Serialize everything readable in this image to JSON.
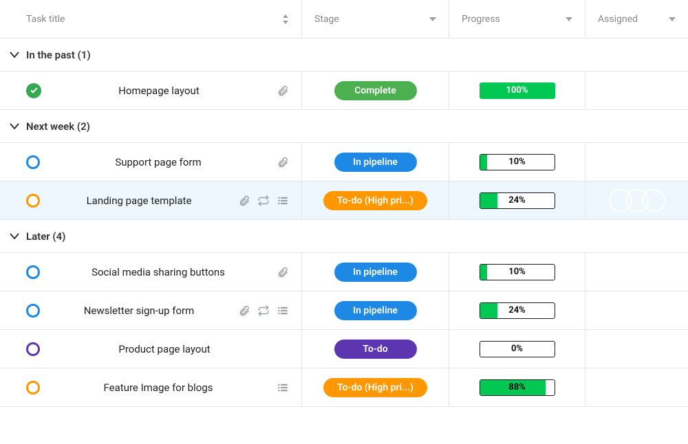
{
  "columns": {
    "title": "Task title",
    "stage": "Stage",
    "progress": "Progress",
    "assigned": "Assigned"
  },
  "colors": {
    "complete": "#4caf50",
    "pipeline": "#1e88e5",
    "todo_high": "#ff9800",
    "todo": "#5e35b1",
    "progress_fill": "#00c853",
    "ring_blue": "#1e88e5",
    "ring_orange": "#ff9800",
    "ring_purple": "#5e35b1",
    "highlight_bg": "#eef7fd",
    "avatar_a": "#00bcd4",
    "avatar_b": "#e91e63",
    "avatar_c": "#f44336",
    "avatar_d": "#8d6e63"
  },
  "groups": [
    {
      "label": "In the past (1)",
      "tasks": [
        {
          "status": "check",
          "title": "Homepage layout",
          "icons": [
            "attach"
          ],
          "stage_label": "Complete",
          "stage_color_key": "complete",
          "progress_pct": 100,
          "progress_label": "100%",
          "progress_full": true,
          "avatars": [
            "a"
          ],
          "highlight": false
        }
      ]
    },
    {
      "label": "Next week (2)",
      "tasks": [
        {
          "status": "ring",
          "ring_color_key": "ring_blue",
          "title": "Support page form",
          "icons": [
            "attach"
          ],
          "stage_label": "In pipeline",
          "stage_color_key": "pipeline",
          "progress_pct": 10,
          "progress_label": "10%",
          "progress_full": false,
          "avatars": [
            "a"
          ],
          "highlight": false
        },
        {
          "status": "ring",
          "ring_color_key": "ring_orange",
          "title": "Landing page template",
          "icons": [
            "attach",
            "repeat",
            "list"
          ],
          "stage_label": "To-do (High pri...)",
          "stage_color_key": "todo_high",
          "progress_pct": 24,
          "progress_label": "24%",
          "progress_full": false,
          "avatars": [
            "a",
            "b",
            "c"
          ],
          "highlight": true
        }
      ]
    },
    {
      "label": "Later (4)",
      "tasks": [
        {
          "status": "ring",
          "ring_color_key": "ring_blue",
          "title": "Social media sharing buttons",
          "icons": [
            "attach"
          ],
          "stage_label": "In pipeline",
          "stage_color_key": "pipeline",
          "progress_pct": 10,
          "progress_label": "10%",
          "progress_full": false,
          "avatars": [
            "a"
          ],
          "highlight": false
        },
        {
          "status": "ring",
          "ring_color_key": "ring_blue",
          "title": "Newsletter sign-up form",
          "icons": [
            "attach",
            "repeat",
            "list"
          ],
          "stage_label": "In pipeline",
          "stage_color_key": "pipeline",
          "progress_pct": 24,
          "progress_label": "24%",
          "progress_full": false,
          "avatars": [
            "a"
          ],
          "highlight": false
        },
        {
          "status": "ring",
          "ring_color_key": "ring_purple",
          "title": "Product page layout",
          "icons": [],
          "stage_label": "To-do",
          "stage_color_key": "todo",
          "progress_pct": 0,
          "progress_label": "0%",
          "progress_full": false,
          "avatars": [
            "a",
            "d"
          ],
          "highlight": false
        },
        {
          "status": "ring",
          "ring_color_key": "ring_orange",
          "title": "Feature Image for blogs",
          "icons": [
            "list"
          ],
          "stage_label": "To-do (High pri...)",
          "stage_color_key": "todo_high",
          "progress_pct": 88,
          "progress_label": "88%",
          "progress_full": false,
          "avatars": [
            "a"
          ],
          "highlight": false
        }
      ]
    }
  ]
}
